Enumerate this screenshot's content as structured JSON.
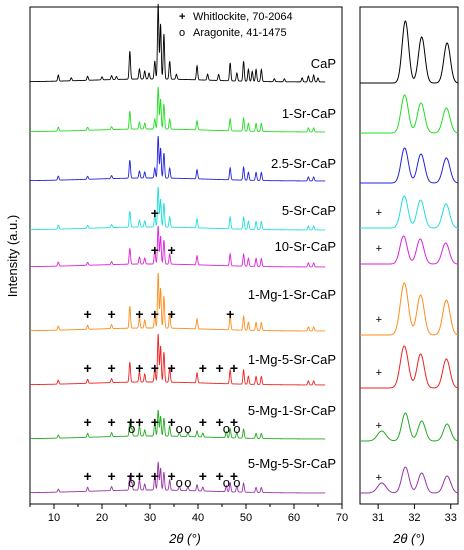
{
  "chart_data": [
    {
      "type": "line",
      "panel": "main",
      "xlabel": "2θ (°)",
      "ylabel": "Intensity (a.u.)",
      "xlim": [
        5,
        70
      ],
      "xticks": [
        10,
        20,
        30,
        40,
        50,
        60,
        70
      ],
      "legend": [
        {
          "symbol": "+",
          "label": "Whitlockite, 70-2064"
        },
        {
          "symbol": "o",
          "label": "Aragonite, 41-1475"
        }
      ],
      "series": [
        {
          "name": "CaP",
          "color": "#000000",
          "peaks": [
            [
              10.9,
              6
            ],
            [
              13.6,
              3
            ],
            [
              17.0,
              4
            ],
            [
              20.0,
              3
            ],
            [
              22.0,
              4
            ],
            [
              23.0,
              3
            ],
            [
              25.8,
              28
            ],
            [
              27.8,
              10
            ],
            [
              28.9,
              8
            ],
            [
              29.8,
              6
            ],
            [
              31.0,
              18
            ],
            [
              31.7,
              75
            ],
            [
              32.2,
              55
            ],
            [
              32.9,
              45
            ],
            [
              34.1,
              18
            ],
            [
              35.5,
              5
            ],
            [
              39.8,
              14
            ],
            [
              42.0,
              6
            ],
            [
              44.3,
              6
            ],
            [
              46.7,
              18
            ],
            [
              48.1,
              8
            ],
            [
              49.5,
              20
            ],
            [
              50.5,
              12
            ],
            [
              51.3,
              10
            ],
            [
              52.1,
              12
            ],
            [
              53.2,
              12
            ],
            [
              55.9,
              3
            ],
            [
              58.0,
              3
            ],
            [
              61.7,
              4
            ],
            [
              63.0,
              6
            ],
            [
              64.1,
              7
            ],
            [
              65.0,
              4
            ]
          ]
        },
        {
          "name": "1-Sr-CaP",
          "color": "#22dd22",
          "peaks": [
            [
              10.9,
              4
            ],
            [
              17.0,
              3
            ],
            [
              22.0,
              3
            ],
            [
              25.8,
              18
            ],
            [
              27.8,
              7
            ],
            [
              28.9,
              6
            ],
            [
              31.0,
              10
            ],
            [
              31.7,
              42
            ],
            [
              32.2,
              30
            ],
            [
              32.9,
              25
            ],
            [
              34.1,
              10
            ],
            [
              39.8,
              9
            ],
            [
              46.7,
              12
            ],
            [
              49.5,
              13
            ],
            [
              50.5,
              8
            ],
            [
              52.1,
              8
            ],
            [
              53.2,
              8
            ],
            [
              63.0,
              4
            ],
            [
              64.1,
              4
            ]
          ]
        },
        {
          "name": "2.5-Sr-CaP",
          "color": "#2222dd",
          "peaks": [
            [
              10.9,
              4
            ],
            [
              17.0,
              3
            ],
            [
              22.0,
              3
            ],
            [
              25.8,
              18
            ],
            [
              27.8,
              7
            ],
            [
              28.9,
              6
            ],
            [
              31.0,
              10
            ],
            [
              31.7,
              42
            ],
            [
              32.2,
              30
            ],
            [
              32.9,
              25
            ],
            [
              34.1,
              10
            ],
            [
              39.8,
              9
            ],
            [
              46.7,
              12
            ],
            [
              49.5,
              13
            ],
            [
              50.5,
              8
            ],
            [
              52.1,
              8
            ],
            [
              53.2,
              8
            ],
            [
              63.0,
              4
            ],
            [
              64.1,
              4
            ]
          ]
        },
        {
          "name": "5-Sr-CaP",
          "color": "#22dddd",
          "peaks": [
            [
              10.9,
              4
            ],
            [
              17.0,
              3
            ],
            [
              22.0,
              3
            ],
            [
              25.8,
              16
            ],
            [
              27.8,
              7
            ],
            [
              28.9,
              6
            ],
            [
              31.0,
              12
            ],
            [
              31.7,
              40
            ],
            [
              32.2,
              28
            ],
            [
              32.9,
              24
            ],
            [
              34.1,
              10
            ],
            [
              39.8,
              9
            ],
            [
              46.7,
              12
            ],
            [
              49.5,
              12
            ],
            [
              50.5,
              8
            ],
            [
              52.1,
              8
            ],
            [
              53.2,
              8
            ],
            [
              63.0,
              4
            ],
            [
              64.1,
              4
            ]
          ]
        },
        {
          "name": "10-Sr-CaP",
          "color": "#dd22dd",
          "peaks": [
            [
              10.9,
              4
            ],
            [
              17.0,
              3
            ],
            [
              22.0,
              3
            ],
            [
              25.8,
              16
            ],
            [
              27.8,
              7
            ],
            [
              28.9,
              6
            ],
            [
              31.0,
              14
            ],
            [
              31.7,
              38
            ],
            [
              32.2,
              28
            ],
            [
              32.9,
              24
            ],
            [
              34.1,
              10
            ],
            [
              39.8,
              9
            ],
            [
              46.7,
              12
            ],
            [
              49.5,
              12
            ],
            [
              50.5,
              8
            ],
            [
              52.1,
              8
            ],
            [
              53.2,
              8
            ],
            [
              63.0,
              4
            ],
            [
              64.1,
              4
            ]
          ]
        },
        {
          "name": "1-Mg-1-Sr-CaP",
          "color": "#ff8c1a",
          "peaks": [
            [
              10.9,
              4
            ],
            [
              17.0,
              4
            ],
            [
              22.0,
              4
            ],
            [
              25.8,
              22
            ],
            [
              27.8,
              10
            ],
            [
              28.9,
              8
            ],
            [
              31.0,
              14
            ],
            [
              31.7,
              55
            ],
            [
              32.2,
              40
            ],
            [
              32.9,
              32
            ],
            [
              34.1,
              14
            ],
            [
              39.8,
              10
            ],
            [
              46.7,
              14
            ],
            [
              49.5,
              14
            ],
            [
              50.5,
              8
            ],
            [
              52.1,
              8
            ],
            [
              53.2,
              8
            ],
            [
              63.0,
              4
            ],
            [
              64.1,
              4
            ]
          ]
        },
        {
          "name": "1-Mg-5-Sr-CaP",
          "color": "#ee2222",
          "peaks": [
            [
              10.9,
              4
            ],
            [
              17.0,
              4
            ],
            [
              22.0,
              4
            ],
            [
              25.8,
              20
            ],
            [
              27.8,
              10
            ],
            [
              28.9,
              8
            ],
            [
              31.0,
              14
            ],
            [
              31.7,
              48
            ],
            [
              32.2,
              36
            ],
            [
              32.9,
              30
            ],
            [
              34.1,
              14
            ],
            [
              39.8,
              10
            ],
            [
              46.7,
              14
            ],
            [
              49.5,
              14
            ],
            [
              50.5,
              8
            ],
            [
              52.1,
              8
            ],
            [
              53.2,
              8
            ],
            [
              63.0,
              4
            ],
            [
              64.1,
              4
            ]
          ]
        },
        {
          "name": "5-Mg-1-Sr-CaP",
          "color": "#22aa22",
          "peaks": [
            [
              10.9,
              3
            ],
            [
              17.0,
              4
            ],
            [
              22.0,
              4
            ],
            [
              25.8,
              14
            ],
            [
              26.2,
              8
            ],
            [
              27.8,
              10
            ],
            [
              28.9,
              6
            ],
            [
              31.0,
              14
            ],
            [
              31.7,
              26
            ],
            [
              32.2,
              20
            ],
            [
              32.9,
              18
            ],
            [
              34.1,
              10
            ],
            [
              36.1,
              4
            ],
            [
              37.9,
              4
            ],
            [
              39.8,
              6
            ],
            [
              41.0,
              4
            ],
            [
              45.9,
              6
            ],
            [
              46.7,
              9
            ],
            [
              48.1,
              6
            ],
            [
              49.5,
              9
            ],
            [
              52.1,
              5
            ],
            [
              53.2,
              5
            ]
          ]
        },
        {
          "name": "5-Mg-5-Sr-CaP",
          "color": "#9933aa",
          "peaks": [
            [
              10.9,
              3
            ],
            [
              17.0,
              4
            ],
            [
              22.0,
              4
            ],
            [
              25.8,
              14
            ],
            [
              26.2,
              8
            ],
            [
              27.8,
              10
            ],
            [
              28.9,
              6
            ],
            [
              31.0,
              14
            ],
            [
              31.7,
              28
            ],
            [
              32.2,
              22
            ],
            [
              32.9,
              18
            ],
            [
              34.1,
              10
            ],
            [
              36.1,
              4
            ],
            [
              37.9,
              4
            ],
            [
              39.8,
              6
            ],
            [
              41.0,
              4
            ],
            [
              45.9,
              6
            ],
            [
              46.7,
              9
            ],
            [
              48.1,
              6
            ],
            [
              49.5,
              9
            ],
            [
              52.1,
              5
            ],
            [
              53.2,
              5
            ]
          ]
        }
      ],
      "markers": [
        {
          "series": "5-Sr-CaP",
          "whitlockite": [
            31.0
          ],
          "aragonite": []
        },
        {
          "series": "10-Sr-CaP",
          "whitlockite": [
            31.0,
            34.5
          ],
          "aragonite": []
        },
        {
          "series": "1-Mg-1-Sr-CaP",
          "whitlockite": [
            17.0,
            22.0,
            27.8,
            31.0,
            34.5,
            46.7
          ],
          "aragonite": []
        },
        {
          "series": "1-Mg-5-Sr-CaP",
          "whitlockite": [
            17.0,
            22.0,
            27.8,
            31.0,
            34.5,
            41.0,
            44.5,
            47.5
          ],
          "aragonite": []
        },
        {
          "series": "5-Mg-1-Sr-CaP",
          "whitlockite": [
            17.0,
            22.0,
            26.0,
            27.8,
            31.0,
            34.5,
            41.0,
            44.5,
            47.5
          ],
          "aragonite": [
            26.2,
            36.1,
            37.9,
            45.9,
            48.1
          ]
        },
        {
          "series": "5-Mg-5-Sr-CaP",
          "whitlockite": [
            17.0,
            22.0,
            26.0,
            27.8,
            31.0,
            34.5,
            41.0,
            44.5,
            47.5
          ],
          "aragonite": [
            26.2,
            36.1,
            37.9,
            45.9,
            48.1
          ]
        }
      ]
    },
    {
      "type": "line",
      "panel": "zoom",
      "xlabel": "2θ (°)",
      "xlim": [
        30.5,
        33.2
      ],
      "xticks": [
        31,
        32,
        33
      ],
      "series": [
        {
          "name": "CaP",
          "color": "#000000",
          "peaks": [
            [
              31.75,
              62,
              0.09
            ],
            [
              32.2,
              46,
              0.09
            ],
            [
              32.9,
              40,
              0.09
            ]
          ],
          "whitlockite": []
        },
        {
          "name": "1-Sr-CaP",
          "color": "#22dd22",
          "peaks": [
            [
              31.73,
              38,
              0.1
            ],
            [
              32.18,
              30,
              0.1
            ],
            [
              32.88,
              25,
              0.1
            ]
          ],
          "whitlockite": []
        },
        {
          "name": "2.5-Sr-CaP",
          "color": "#2222dd",
          "peaks": [
            [
              31.73,
              35,
              0.1
            ],
            [
              32.18,
              29,
              0.1
            ],
            [
              32.88,
              25,
              0.1
            ]
          ],
          "whitlockite": []
        },
        {
          "name": "5-Sr-CaP",
          "color": "#22dddd",
          "peaks": [
            [
              31.72,
              32,
              0.1
            ],
            [
              32.17,
              28,
              0.1
            ],
            [
              32.87,
              24,
              0.1
            ]
          ],
          "whitlockite": [
            31.02
          ]
        },
        {
          "name": "10-Sr-CaP",
          "color": "#dd22dd",
          "peaks": [
            [
              31.7,
              28,
              0.1
            ],
            [
              32.16,
              25,
              0.1
            ],
            [
              32.86,
              21,
              0.1
            ]
          ],
          "whitlockite": [
            31.02
          ]
        },
        {
          "name": "1-Mg-1-Sr-CaP",
          "color": "#ff8c1a",
          "peaks": [
            [
              31.72,
              52,
              0.11
            ],
            [
              32.17,
              40,
              0.1
            ],
            [
              32.88,
              35,
              0.1
            ]
          ],
          "whitlockite": [
            31.02
          ]
        },
        {
          "name": "1-Mg-5-Sr-CaP",
          "color": "#ee2222",
          "peaks": [
            [
              31.72,
              42,
              0.11
            ],
            [
              32.17,
              34,
              0.1
            ],
            [
              32.88,
              29,
              0.1
            ]
          ],
          "whitlockite": [
            31.02
          ]
        },
        {
          "name": "5-Mg-1-Sr-CaP",
          "color": "#22aa22",
          "peaks": [
            [
              31.1,
              10,
              0.12
            ],
            [
              31.75,
              28,
              0.1
            ],
            [
              32.2,
              20,
              0.1
            ],
            [
              32.9,
              17,
              0.1
            ]
          ],
          "whitlockite": [
            31.02
          ]
        },
        {
          "name": "5-Mg-5-Sr-CaP",
          "color": "#9933aa",
          "peaks": [
            [
              31.1,
              10,
              0.12
            ],
            [
              31.75,
              26,
              0.1
            ],
            [
              32.2,
              20,
              0.1
            ],
            [
              32.9,
              17,
              0.1
            ]
          ],
          "whitlockite": [
            31.02
          ]
        }
      ]
    }
  ]
}
